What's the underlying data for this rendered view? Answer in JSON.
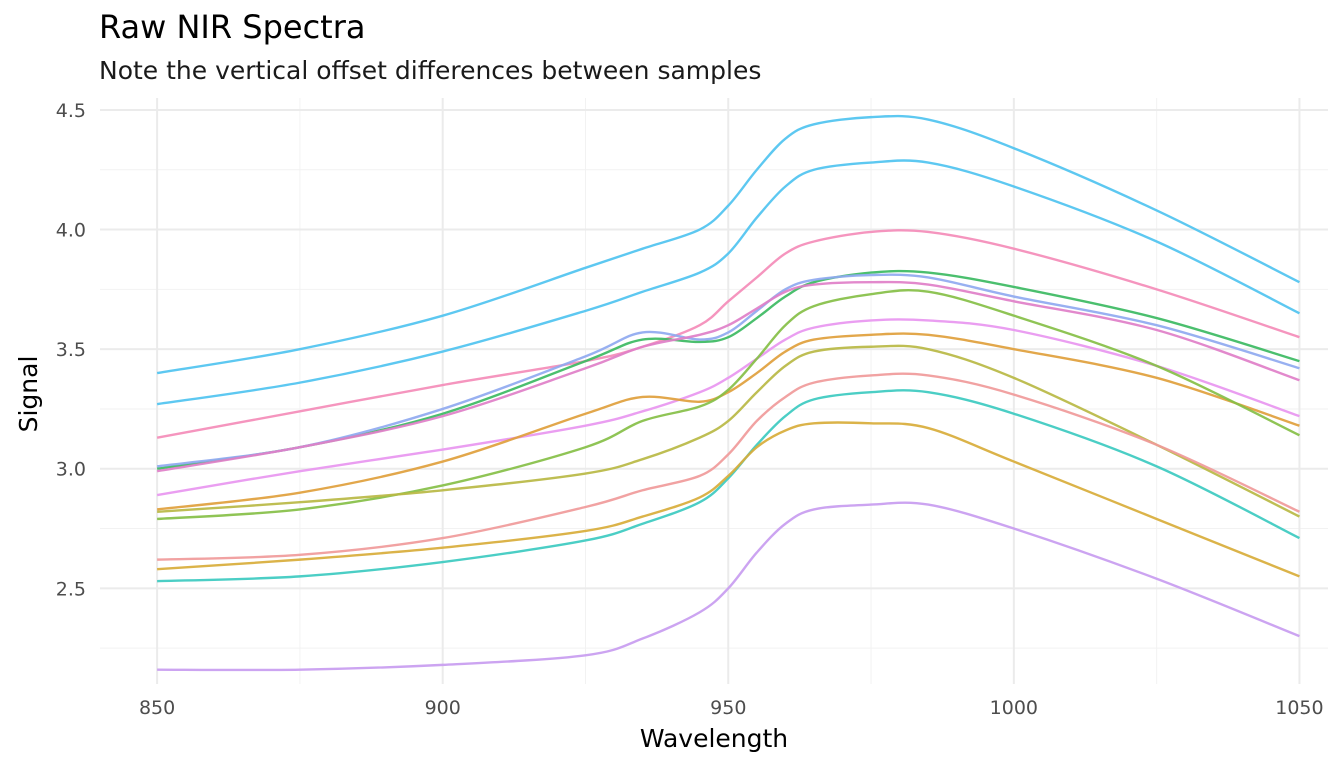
{
  "chart_data": {
    "type": "line",
    "title": "Raw NIR Spectra",
    "subtitle": "Note the vertical offset differences between samples",
    "xlabel": "Wavelength",
    "ylabel": "Signal",
    "xlim": [
      840,
      1055
    ],
    "ylim": [
      2.1,
      4.55
    ],
    "x_ticks": [
      850,
      900,
      950,
      1000,
      1050
    ],
    "x_tick_labels": [
      "850",
      "900",
      "950",
      "1000",
      "1050"
    ],
    "y_ticks": [
      2.5,
      3.0,
      3.5,
      4.0,
      4.5
    ],
    "y_tick_labels": [
      "2.5",
      "3.0",
      "3.5",
      "4.0",
      "4.5"
    ],
    "grid": true,
    "legend": "none",
    "x": [
      850,
      875,
      900,
      925,
      935,
      945,
      950,
      955,
      960,
      965,
      975,
      985,
      1000,
      1025,
      1050
    ],
    "series": [
      {
        "color": "#4fc3f0",
        "values": [
          3.4,
          3.5,
          3.64,
          3.84,
          3.92,
          4.0,
          4.1,
          4.25,
          4.38,
          4.44,
          4.47,
          4.46,
          4.34,
          4.08,
          3.78
        ]
      },
      {
        "color": "#4fc3f0",
        "values": [
          3.27,
          3.36,
          3.49,
          3.66,
          3.74,
          3.82,
          3.9,
          4.05,
          4.18,
          4.25,
          4.28,
          4.28,
          4.18,
          3.95,
          3.65
        ]
      },
      {
        "color": "#f48cb8",
        "values": [
          3.13,
          3.24,
          3.35,
          3.45,
          3.51,
          3.6,
          3.7,
          3.8,
          3.9,
          3.95,
          3.99,
          3.99,
          3.92,
          3.75,
          3.55
        ]
      },
      {
        "color": "#3cba62",
        "values": [
          3.0,
          3.09,
          3.23,
          3.45,
          3.54,
          3.53,
          3.55,
          3.63,
          3.72,
          3.78,
          3.82,
          3.82,
          3.76,
          3.63,
          3.45
        ]
      },
      {
        "color": "#8fa9f0",
        "values": [
          3.01,
          3.09,
          3.25,
          3.47,
          3.57,
          3.54,
          3.57,
          3.66,
          3.75,
          3.79,
          3.81,
          3.8,
          3.72,
          3.6,
          3.42
        ]
      },
      {
        "color": "#e07fc8",
        "values": [
          2.99,
          3.09,
          3.22,
          3.42,
          3.51,
          3.56,
          3.6,
          3.67,
          3.74,
          3.77,
          3.78,
          3.77,
          3.7,
          3.58,
          3.37
        ]
      },
      {
        "color": "#e896f0",
        "values": [
          2.89,
          2.99,
          3.08,
          3.18,
          3.24,
          3.32,
          3.38,
          3.46,
          3.54,
          3.59,
          3.62,
          3.62,
          3.58,
          3.43,
          3.22
        ]
      },
      {
        "color": "#e0a03c",
        "values": [
          2.83,
          2.9,
          3.03,
          3.23,
          3.3,
          3.28,
          3.32,
          3.4,
          3.49,
          3.54,
          3.56,
          3.56,
          3.5,
          3.38,
          3.18
        ]
      },
      {
        "color": "#86bf46",
        "values": [
          2.79,
          2.83,
          2.93,
          3.09,
          3.2,
          3.26,
          3.33,
          3.46,
          3.6,
          3.68,
          3.73,
          3.74,
          3.64,
          3.43,
          3.14
        ]
      },
      {
        "color": "#b8b844",
        "values": [
          2.82,
          2.86,
          2.91,
          2.98,
          3.04,
          3.13,
          3.2,
          3.32,
          3.43,
          3.49,
          3.51,
          3.5,
          3.38,
          3.1,
          2.8
        ]
      },
      {
        "color": "#f09a9a",
        "values": [
          2.62,
          2.64,
          2.71,
          2.84,
          2.91,
          2.97,
          3.06,
          3.2,
          3.3,
          3.36,
          3.39,
          3.39,
          3.31,
          3.1,
          2.82
        ]
      },
      {
        "color": "#3ccac0",
        "values": [
          2.53,
          2.55,
          2.61,
          2.7,
          2.77,
          2.86,
          2.96,
          3.1,
          3.22,
          3.29,
          3.32,
          3.32,
          3.23,
          3.01,
          2.71
        ]
      },
      {
        "color": "#d8ac3a",
        "values": [
          2.58,
          2.62,
          2.67,
          2.74,
          2.8,
          2.88,
          2.97,
          3.09,
          3.16,
          3.19,
          3.19,
          3.17,
          3.03,
          2.79,
          2.55
        ]
      },
      {
        "color": "#c89cf0",
        "values": [
          2.16,
          2.16,
          2.18,
          2.22,
          2.29,
          2.4,
          2.5,
          2.65,
          2.77,
          2.83,
          2.85,
          2.85,
          2.75,
          2.54,
          2.3
        ]
      }
    ]
  }
}
